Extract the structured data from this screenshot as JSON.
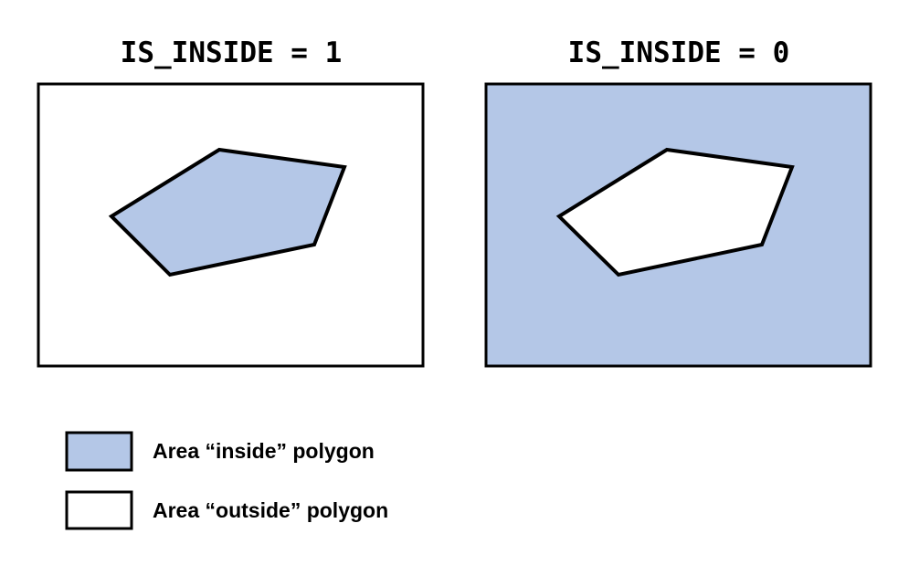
{
  "panels": [
    {
      "title": "IS_INSIDE = 1",
      "region_fill": "inside",
      "polygon_fill": "outside_polygon_shaded"
    },
    {
      "title": "IS_INSIDE = 0",
      "region_fill": "outside",
      "polygon_fill": "inside_polygon_blank"
    }
  ],
  "legend": {
    "inside_label": "Area “inside” polygon",
    "outside_label": "Area “outside” polygon"
  },
  "colors": {
    "inside": "#b4c7e7",
    "outside": "#ffffff",
    "stroke": "#000000"
  }
}
